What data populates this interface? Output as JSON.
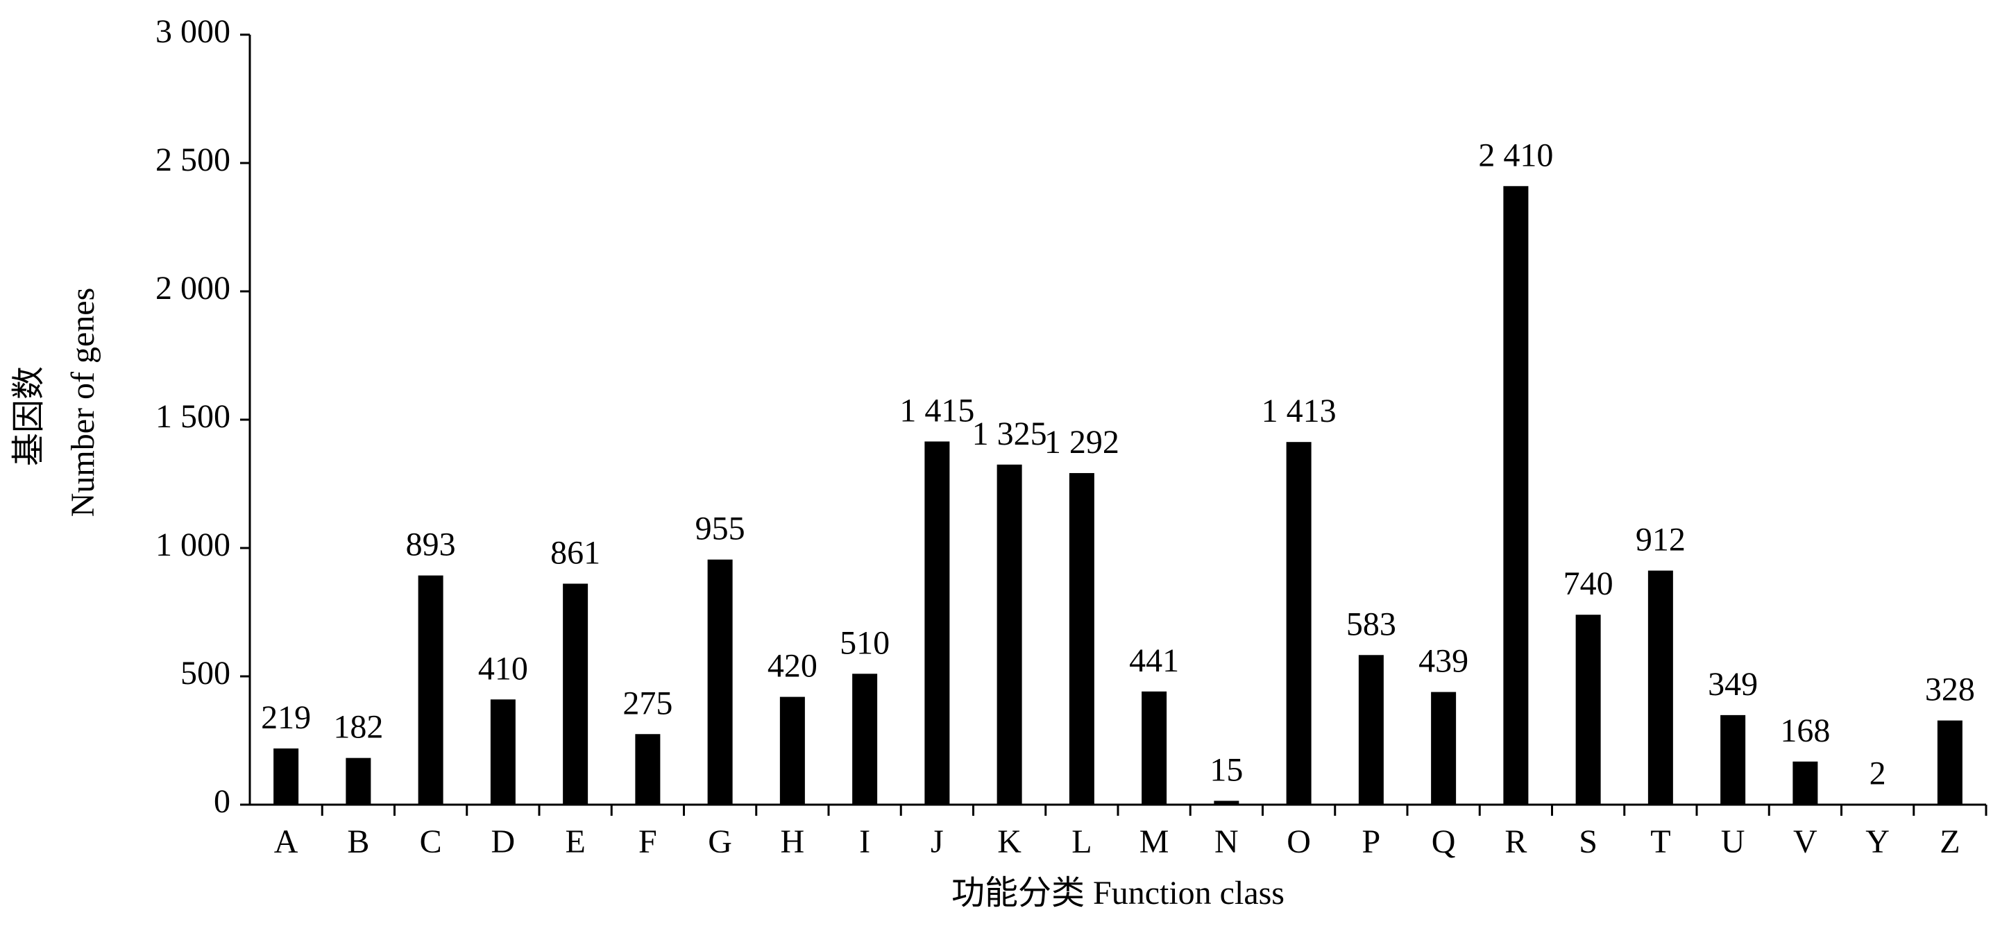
{
  "chart_data": {
    "type": "bar",
    "xlabel": "功能分类 Function class",
    "ylabel_lines": [
      "基因数",
      "Number of genes"
    ],
    "categories": [
      "A",
      "B",
      "C",
      "D",
      "E",
      "F",
      "G",
      "H",
      "I",
      "J",
      "K",
      "L",
      "M",
      "N",
      "O",
      "P",
      "Q",
      "R",
      "S",
      "T",
      "U",
      "V",
      "Y",
      "Z"
    ],
    "values": [
      219,
      182,
      893,
      410,
      861,
      275,
      955,
      420,
      510,
      1415,
      1325,
      1292,
      441,
      15,
      1413,
      583,
      439,
      2410,
      740,
      912,
      349,
      168,
      2,
      328
    ],
    "value_labels": [
      "219",
      "182",
      "893",
      "410",
      "861",
      "275",
      "955",
      "420",
      "510",
      "1 415",
      "1 325",
      "1 292",
      "441",
      "15",
      "1 413",
      "583",
      "439",
      "2 410",
      "740",
      "912",
      "349",
      "168",
      "2",
      "328"
    ],
    "color": "#000000",
    "ylim": [
      0,
      3000
    ],
    "yticks": [
      0,
      500,
      {
        "value": 1000,
        "label": "1 000"
      },
      {
        "value": 1500,
        "label": "1 500"
      },
      {
        "value": 2000,
        "label": "2 000"
      },
      {
        "value": 2500,
        "label": "2 500"
      },
      {
        "value": 3000,
        "label": "3 000"
      }
    ],
    "grid": false
  }
}
